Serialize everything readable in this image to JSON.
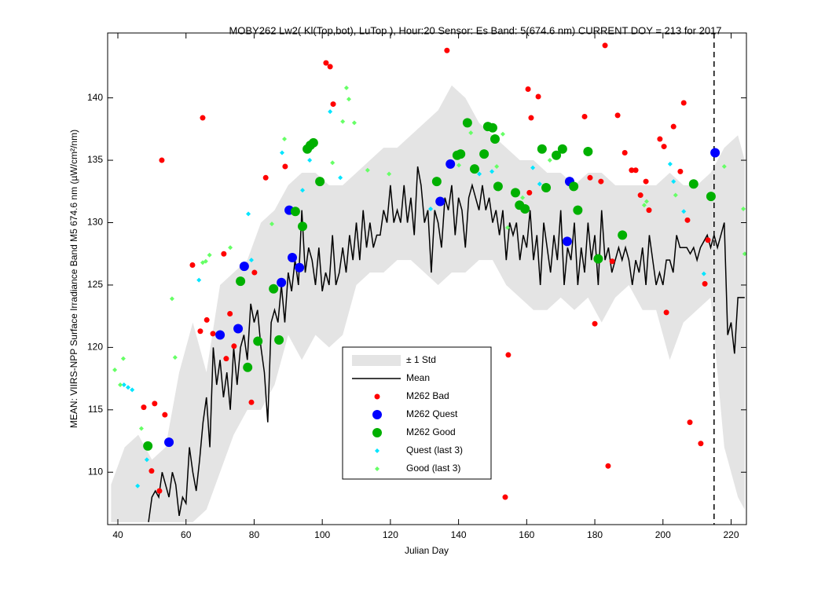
{
  "chart_data": {
    "type": "scatter",
    "title": "MOBY262   Lw2( Kl(Top,bot), LuTop ),   Hour:20 Sensor: Es Band: 5(674.6 nm)   CURRENT DOY = 213 for 2017",
    "xlabel": "Julian Day",
    "ylabel": "MEAN: VIIRS-NPP Surface Irradiance Band M5 674.6 nm (µW/cm²/nm)",
    "xlim": [
      37,
      224.5
    ],
    "ylim": [
      105.8,
      145.2
    ],
    "xticks": [
      40,
      60,
      80,
      100,
      120,
      140,
      160,
      180,
      200,
      220
    ],
    "yticks": [
      110,
      115,
      120,
      125,
      130,
      135,
      140
    ],
    "vline": 215,
    "band": {
      "name": "± 1 Std",
      "color": "#e4e4e4",
      "x": [
        38,
        42,
        46,
        50,
        54,
        58,
        62,
        66,
        70,
        74,
        78,
        82,
        86,
        90,
        94,
        98,
        102,
        106,
        110,
        114,
        118,
        122,
        126,
        130,
        134,
        138,
        142,
        146,
        150,
        154,
        158,
        162,
        166,
        170,
        174,
        178,
        182,
        186,
        190,
        194,
        198,
        202,
        206,
        210,
        214,
        218,
        222,
        224
      ],
      "lower": [
        106,
        106,
        106,
        106,
        106,
        106,
        106,
        107,
        110,
        113,
        115,
        115,
        117,
        121,
        119,
        121,
        120,
        121,
        125,
        126,
        126,
        127,
        127,
        126,
        125,
        126,
        126,
        127,
        127,
        125,
        124,
        123,
        123,
        124,
        123,
        124,
        122,
        124,
        125,
        123,
        123,
        119,
        122,
        123,
        124,
        112,
        108,
        107
      ],
      "upper": [
        109,
        112,
        113,
        111,
        112,
        118,
        122,
        118,
        125,
        126,
        127,
        130,
        131,
        133,
        134,
        134,
        133,
        133,
        134,
        135,
        136,
        136,
        137,
        138,
        139,
        141,
        140,
        138,
        137,
        136,
        135,
        135,
        134,
        134,
        133,
        134,
        134,
        133,
        133,
        133,
        133,
        134,
        133,
        133,
        134,
        136,
        137,
        135
      ]
    },
    "mean": {
      "name": "Mean",
      "color": "#000000",
      "x": [
        49,
        50,
        51,
        52,
        53,
        54,
        55,
        56,
        57,
        58,
        59,
        60,
        61,
        62,
        63,
        64,
        65,
        66,
        67,
        68,
        69,
        70,
        71,
        72,
        73,
        74,
        75,
        76,
        77,
        78,
        79,
        80,
        81,
        82,
        83,
        84,
        85,
        86,
        87,
        88,
        89,
        90,
        91,
        92,
        93,
        94,
        95,
        96,
        97,
        98,
        99,
        100,
        101,
        102,
        103,
        104,
        105,
        106,
        107,
        108,
        109,
        110,
        111,
        112,
        113,
        114,
        115,
        116,
        117,
        118,
        119,
        120,
        121,
        122,
        123,
        124,
        125,
        126,
        127,
        128,
        129,
        130,
        131,
        132,
        133,
        134,
        135,
        136,
        137,
        138,
        139,
        140,
        141,
        142,
        143,
        144,
        145,
        146,
        147,
        148,
        149,
        150,
        151,
        152,
        153,
        154,
        155,
        156,
        157,
        158,
        159,
        160,
        161,
        162,
        163,
        164,
        165,
        166,
        167,
        168,
        169,
        170,
        171,
        172,
        173,
        174,
        175,
        176,
        177,
        178,
        179,
        180,
        181,
        182,
        183,
        184,
        185,
        186,
        187,
        188,
        189,
        190,
        191,
        192,
        193,
        194,
        195,
        196,
        197,
        198,
        199,
        200,
        201,
        202,
        203,
        204,
        205,
        206,
        207,
        208,
        209,
        210,
        211,
        212,
        213,
        214,
        215,
        216,
        217,
        218,
        219,
        220,
        221,
        222,
        223,
        224
      ],
      "values": [
        106,
        108,
        108.5,
        108,
        110,
        109,
        108,
        110,
        109,
        106.5,
        108,
        107.5,
        112,
        110,
        108.5,
        111,
        114,
        116,
        112,
        120,
        117,
        119,
        116,
        118,
        115,
        120,
        117,
        120,
        121,
        119,
        123.5,
        122,
        123,
        120,
        118,
        114,
        122,
        123,
        122,
        125,
        122,
        126,
        124.5,
        127,
        125,
        131,
        126,
        128,
        127,
        125,
        128,
        124.5,
        126,
        125,
        129,
        125,
        126,
        128,
        126,
        129,
        127,
        130,
        127,
        131,
        128,
        130,
        128,
        129,
        129,
        131,
        130,
        133,
        130,
        131,
        130,
        133,
        130,
        132,
        129,
        134.5,
        133,
        130,
        131,
        126,
        131,
        130,
        128,
        132,
        131,
        133,
        129,
        132,
        131,
        128,
        132,
        133,
        132,
        131,
        133,
        131,
        132,
        130,
        131,
        129,
        131,
        127,
        130,
        129,
        130,
        127,
        129,
        128,
        131,
        127,
        129,
        125,
        130,
        128,
        126,
        129,
        127,
        131,
        125,
        128,
        127,
        130,
        125,
        128,
        126,
        130,
        127,
        129,
        125,
        131,
        127,
        128,
        126,
        127,
        128,
        127,
        128,
        127,
        125,
        127,
        126,
        128,
        125,
        129,
        127,
        125,
        126,
        125,
        127,
        127,
        126,
        129,
        128,
        128,
        128,
        127.5,
        128,
        127,
        128,
        128.5,
        129,
        128,
        129,
        128,
        129,
        130,
        121,
        122,
        119.5,
        124,
        124,
        124
      ]
    },
    "series": [
      {
        "name": "M262 Bad",
        "color": "#ff0000",
        "marker": "dot",
        "x": [
          47.6,
          50.8,
          52.9,
          52.2,
          53.8,
          49.9,
          61.9,
          64.2,
          64.9,
          66.1,
          67.9,
          71.1,
          71.8,
          72.9,
          74.1,
          79.2,
          80.1,
          83.4,
          85.7,
          89.1,
          101.1,
          102.3,
          103.2,
          136.6,
          154.6,
          153.7,
          160.8,
          160.4,
          161.3,
          163.4,
          177.0,
          178.6,
          181.8,
          180.0,
          185.1,
          183.0,
          183.9,
          186.7,
          188.8,
          190.8,
          192.0,
          193.4,
          195.0,
          195.9,
          199.1,
          200.3,
          201.0,
          203.1,
          205.1,
          206.1,
          207.2,
          207.9,
          211.1,
          212.3,
          213.2
        ],
        "values": [
          115.2,
          115.5,
          135.0,
          108.5,
          114.6,
          110.1,
          126.6,
          121.3,
          138.4,
          122.2,
          121.1,
          127.5,
          119.1,
          122.7,
          120.1,
          115.6,
          126.0,
          133.6,
          124.7,
          134.5,
          142.8,
          142.5,
          139.5,
          143.8,
          119.4,
          108.0,
          132.4,
          140.7,
          138.4,
          140.1,
          138.5,
          133.6,
          133.3,
          121.9,
          126.9,
          144.2,
          110.5,
          138.6,
          135.6,
          134.2,
          134.2,
          132.2,
          133.3,
          131.0,
          136.7,
          136.1,
          122.8,
          137.7,
          134.1,
          139.6,
          130.2,
          114.0,
          112.3,
          125.1,
          128.6
        ]
      },
      {
        "name": "M262 Quest",
        "color": "#0000ff",
        "marker": "big",
        "x": [
          55.0,
          70.0,
          75.3,
          77.1,
          88.0,
          90.3,
          91.2,
          93.3,
          134.6,
          137.6,
          171.9,
          172.6,
          215.3
        ],
        "values": [
          112.4,
          121.0,
          121.5,
          126.5,
          125.2,
          131.0,
          127.2,
          126.4,
          131.7,
          134.7,
          128.5,
          133.3,
          135.6
        ]
      },
      {
        "name": "M262 Good",
        "color": "#00b000",
        "marker": "big",
        "x": [
          48.8,
          76.0,
          78.1,
          81.1,
          85.7,
          87.3,
          92.1,
          94.2,
          95.6,
          96.5,
          97.4,
          99.3,
          133.6,
          139.6,
          140.6,
          142.6,
          144.7,
          147.5,
          148.6,
          150.0,
          150.7,
          151.6,
          156.7,
          157.9,
          159.5,
          164.5,
          165.7,
          168.7,
          170.5,
          173.8,
          175.0,
          178.0,
          181.0,
          188.1,
          209.0,
          214.1
        ],
        "values": [
          112.1,
          125.3,
          118.4,
          120.5,
          124.7,
          120.6,
          130.9,
          129.7,
          135.9,
          136.2,
          136.4,
          133.3,
          133.3,
          135.4,
          135.5,
          138.0,
          134.3,
          135.5,
          137.7,
          137.6,
          136.7,
          132.9,
          132.4,
          131.4,
          131.1,
          135.9,
          132.8,
          135.4,
          135.9,
          132.9,
          131.0,
          135.7,
          127.1,
          129.0,
          133.1,
          132.1
        ]
      },
      {
        "name": "Quest (last 3)",
        "color": "#00e5ff",
        "marker": "diamond",
        "x": [
          41.8,
          43.0,
          44.2,
          45.8,
          48.5,
          63.8,
          78.3,
          79.2,
          88.2,
          94.2,
          96.3,
          102.3,
          105.3,
          131.8,
          146.1,
          149.8,
          161.8,
          163.8,
          202.1,
          203.1,
          206.1,
          212.0
        ],
        "values": [
          117.0,
          116.8,
          116.6,
          108.9,
          111.0,
          125.4,
          130.7,
          127.0,
          135.6,
          132.6,
          135.0,
          138.9,
          133.6,
          131.1,
          133.9,
          134.1,
          134.4,
          133.1,
          134.7,
          133.3,
          130.9,
          125.9
        ]
      },
      {
        "name": "Good (last 3)",
        "color": "#66ff66",
        "marker": "diamond",
        "x": [
          39.1,
          41.6,
          40.7,
          46.9,
          55.9,
          56.8,
          64.9,
          65.8,
          66.9,
          73.0,
          85.2,
          88.9,
          103.0,
          106.0,
          107.1,
          107.8,
          109.4,
          113.3,
          119.6,
          140.1,
          143.6,
          151.2,
          153.0,
          154.4,
          158.8,
          166.8,
          194.5,
          195.2,
          203.7,
          218.0,
          223.6,
          224.0
        ],
        "values": [
          118.2,
          119.1,
          117.0,
          113.5,
          123.9,
          119.2,
          126.8,
          126.9,
          127.4,
          128.0,
          129.9,
          136.7,
          134.8,
          138.1,
          140.8,
          139.9,
          138.0,
          134.2,
          133.9,
          134.6,
          137.2,
          134.5,
          137.1,
          129.6,
          132.0,
          135.0,
          131.4,
          131.7,
          132.2,
          134.5,
          131.1,
          127.5
        ]
      }
    ]
  }
}
